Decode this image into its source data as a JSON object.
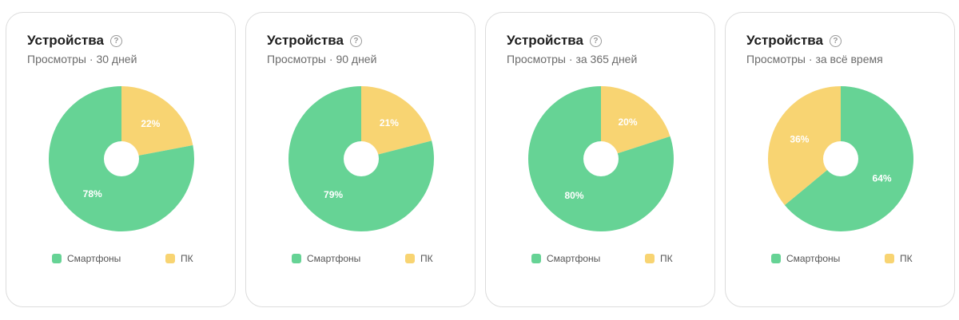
{
  "colors": {
    "smartphones": "#66d395",
    "pc": "#f8d472",
    "hole": "#ffffff"
  },
  "cards": [
    {
      "title": "Устройства",
      "subtitle": "Просмотры · 30 дней"
    },
    {
      "title": "Устройства",
      "subtitle": "Просмотры · 90 дней"
    },
    {
      "title": "Устройства",
      "subtitle": "Просмотры · за 365 дней"
    },
    {
      "title": "Устройства",
      "subtitle": "Просмотры · за всё время"
    }
  ],
  "help_icon": "question-circle-icon",
  "help_glyph": "?",
  "chart_data": [
    {
      "type": "pie",
      "categories": [
        "Смартфоны",
        "ПК"
      ],
      "values": [
        78,
        22
      ],
      "labels": [
        "78%",
        "22%"
      ]
    },
    {
      "type": "pie",
      "categories": [
        "Смартфоны",
        "ПК"
      ],
      "values": [
        79,
        21
      ],
      "labels": [
        "79%",
        "21%"
      ]
    },
    {
      "type": "pie",
      "categories": [
        "Смартфоны",
        "ПК"
      ],
      "values": [
        80,
        20
      ],
      "labels": [
        "80%",
        "20%"
      ]
    },
    {
      "type": "pie",
      "categories": [
        "Смартфоны",
        "ПК"
      ],
      "values": [
        64,
        36
      ],
      "labels": [
        "64%",
        "36%"
      ]
    }
  ]
}
